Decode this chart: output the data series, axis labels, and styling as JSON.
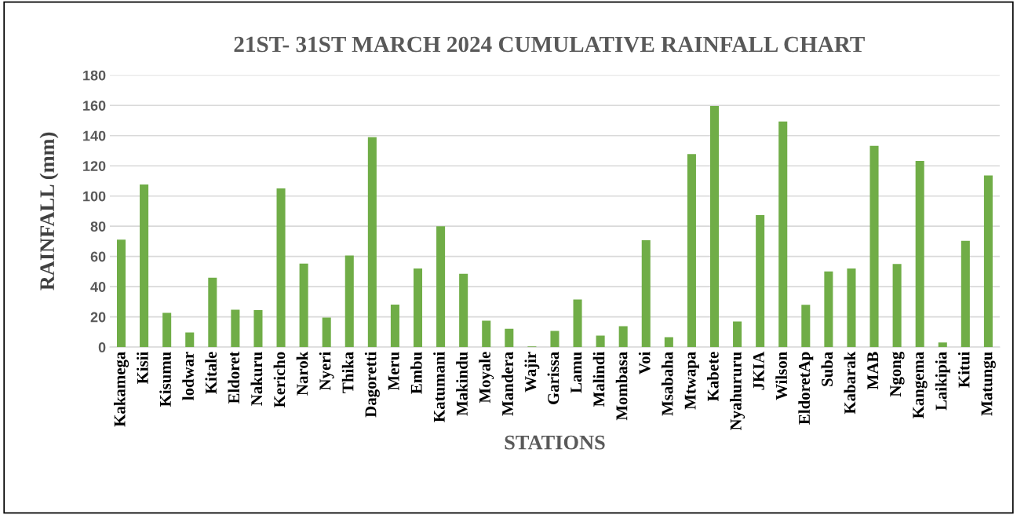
{
  "chart_data": {
    "type": "bar",
    "title": "21ST- 31ST MARCH 2024 CUMULATIVE RAINFALL CHART",
    "xlabel": "STATIONS",
    "ylabel": "RAINFALL (mm)",
    "categories": [
      "Kakamega",
      "Kisii",
      "Kisumu",
      "lodwar",
      "Kitale",
      "Eldoret",
      "Nakuru",
      "Kericho",
      "Narok",
      "Nyeri",
      "Thika",
      "Dagoretti",
      "Meru",
      "Embu",
      "Katumani",
      "Makindu",
      "Moyale",
      "Mandera",
      "Wajir",
      "Garissa",
      "Lamu",
      "Malindi",
      "Mombasa",
      "Voi",
      "Msabaha",
      "Mtwapa",
      "Kabete",
      "Nyahururu",
      "JKIA",
      "Wilson",
      "EldoretAp",
      "Suba",
      "Kabarak",
      "MAB",
      "Ngong",
      "Kangema",
      "Laikipia",
      "Kitui",
      "Matungu"
    ],
    "values": [
      71.1,
      107.6,
      22.7,
      9.7,
      46,
      24.7,
      24.5,
      105,
      55.3,
      19.6,
      60.6,
      139,
      28.2,
      52,
      80,
      48.5,
      17.5,
      12.2,
      0.4,
      10.7,
      31.5,
      7.6,
      13.8,
      70.7,
      6.6,
      127.8,
      159.6,
      16.9,
      87.4,
      149.3,
      28,
      50.1,
      52,
      133.2,
      55,
      123.3,
      3.1,
      70.3,
      113.6
    ],
    "color": "#70ad47",
    "ylim": [
      0,
      180
    ],
    "yticks": [
      0,
      20,
      40,
      60,
      80,
      100,
      120,
      140,
      160,
      180
    ],
    "grid": "y",
    "legend": false
  }
}
